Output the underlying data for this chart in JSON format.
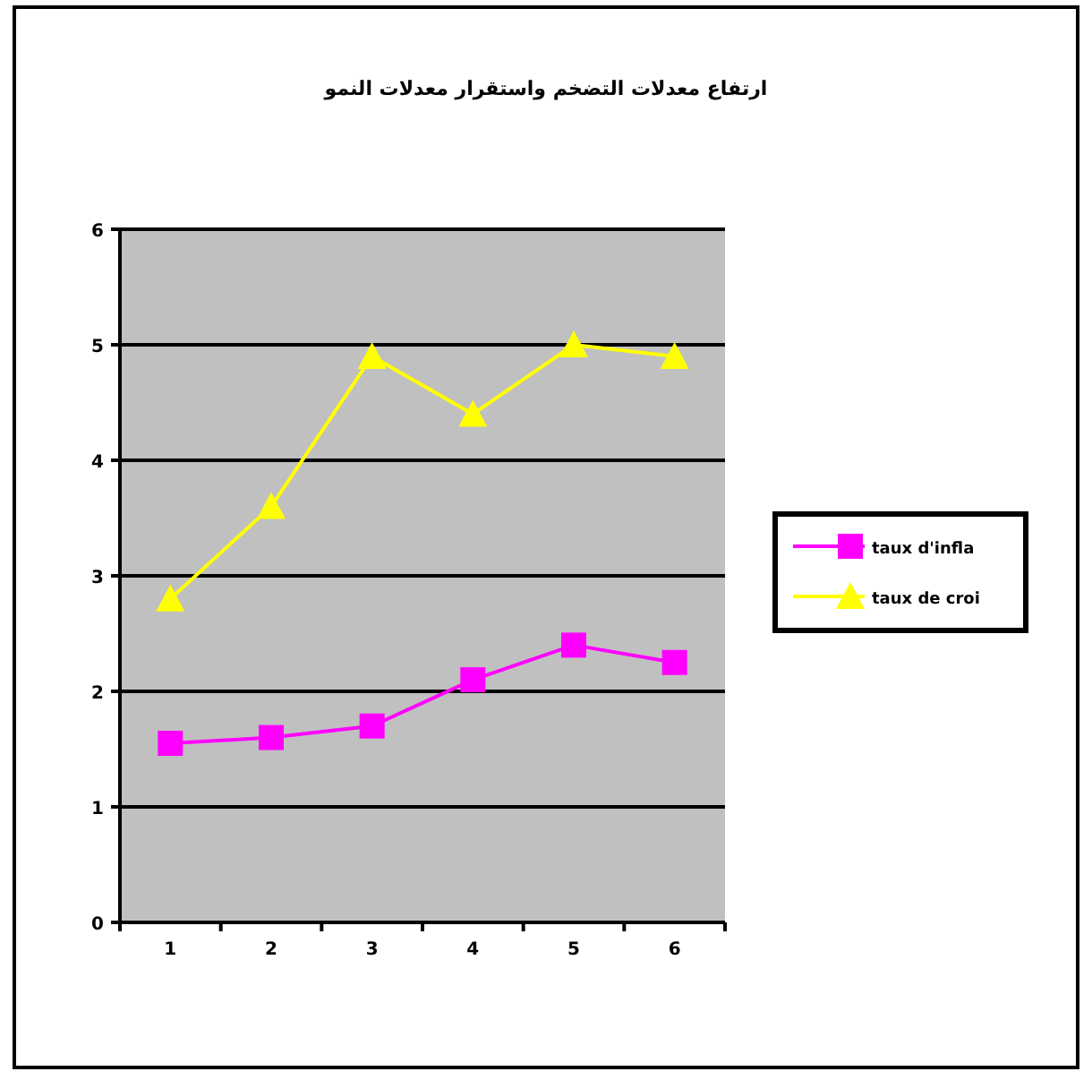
{
  "chart_data": {
    "type": "line",
    "title": "ارتفاع معدلات التضخم واستقرار معدلات النمو",
    "categories": [
      "1",
      "2",
      "3",
      "4",
      "5",
      "6"
    ],
    "series": [
      {
        "name": "taux d'infla",
        "color": "#ff00ff",
        "marker": "square",
        "values": [
          1.55,
          1.6,
          1.7,
          2.1,
          2.4,
          2.25
        ]
      },
      {
        "name": "taux de croi",
        "color": "#ffff00",
        "marker": "triangle",
        "values": [
          2.8,
          3.6,
          4.9,
          4.4,
          5.0,
          4.9
        ]
      }
    ],
    "ylim": [
      0,
      6
    ],
    "yticks": [
      0,
      1,
      2,
      3,
      4,
      5,
      6
    ],
    "grid": "y",
    "legend": "right",
    "line_style": "solid"
  }
}
